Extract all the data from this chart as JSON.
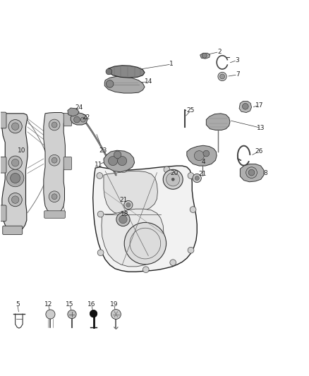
{
  "bg_color": "#ffffff",
  "label_fontsize": 6.5,
  "lc": "#333333",
  "nc": "#222222",
  "part_gray": "#888888",
  "light_gray": "#cccccc",
  "mid_gray": "#aaaaaa",
  "dark_gray": "#555555",
  "label_positions": {
    "1": [
      0.56,
      0.895,
      0.5,
      0.875
    ],
    "2": [
      0.71,
      0.942,
      0.695,
      0.925
    ],
    "3": [
      0.768,
      0.912,
      0.748,
      0.898
    ],
    "7": [
      0.77,
      0.87,
      0.753,
      0.858
    ],
    "10": [
      0.082,
      0.618,
      0.095,
      0.6
    ],
    "11": [
      0.43,
      0.572,
      0.45,
      0.558
    ],
    "12": [
      0.162,
      0.12,
      0.162,
      0.098
    ],
    "13": [
      0.848,
      0.692,
      0.828,
      0.68
    ],
    "14": [
      0.498,
      0.842,
      0.52,
      0.828
    ],
    "15": [
      0.232,
      0.12,
      0.232,
      0.098
    ],
    "16": [
      0.302,
      0.12,
      0.302,
      0.098
    ],
    "17": [
      0.862,
      0.762,
      0.842,
      0.748
    ],
    "18": [
      0.42,
      0.41,
      0.432,
      0.392
    ],
    "19": [
      0.375,
      0.12,
      0.375,
      0.098
    ],
    "20": [
      0.58,
      0.54,
      0.59,
      0.522
    ],
    "21a": [
      0.672,
      0.54,
      0.658,
      0.525
    ],
    "21b": [
      0.418,
      0.455,
      0.425,
      0.438
    ],
    "22": [
      0.288,
      0.722,
      0.295,
      0.708
    ],
    "23": [
      0.332,
      0.622,
      0.345,
      0.608
    ],
    "24": [
      0.268,
      0.742,
      0.278,
      0.728
    ],
    "25": [
      0.618,
      0.748,
      0.62,
      0.73
    ],
    "26": [
      0.838,
      0.618,
      0.828,
      0.598
    ],
    "4": [
      0.668,
      0.582,
      0.652,
      0.565
    ],
    "5": [
      0.06,
      0.12,
      0.06,
      0.098
    ],
    "8": [
      0.848,
      0.545,
      0.83,
      0.53
    ]
  }
}
